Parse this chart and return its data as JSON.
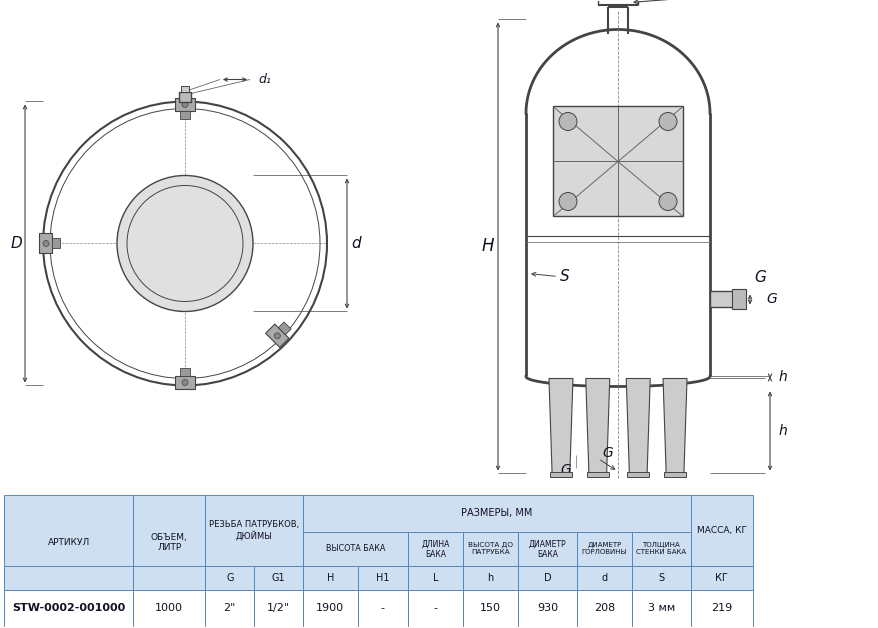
{
  "table_header_bg": "#cddff0",
  "table_row_bg": "#ffffff",
  "table_border_color": "#5588bb",
  "table_text_color": "#111122",
  "diagram_line_color": "#444444",
  "background_color": "#ffffff",
  "data_row": [
    "STW-0002-001000",
    "1000",
    "2\"",
    "1/2\"",
    "1900",
    "-",
    "-",
    "150",
    "930",
    "208",
    "3 мм",
    "219"
  ]
}
